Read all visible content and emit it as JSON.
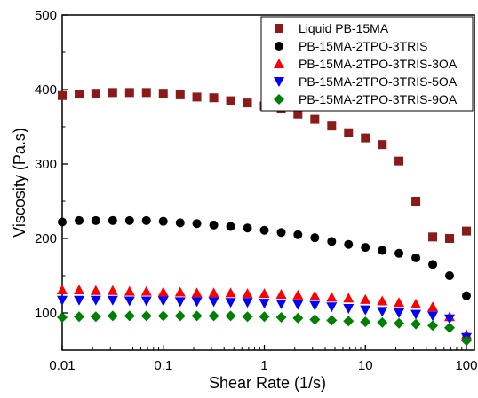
{
  "chart_data": {
    "type": "scatter",
    "xlabel": "Shear Rate (1/s)",
    "ylabel": "Viscosity (Pa.s)",
    "xscale": "log",
    "xlim": [
      0.01,
      120
    ],
    "ylim": [
      50,
      500
    ],
    "xticks": [
      0.01,
      0.1,
      1,
      10,
      100
    ],
    "xtick_labels": [
      "0.01",
      "0.1",
      "1",
      "10",
      "100"
    ],
    "yticks": [
      100,
      200,
      300,
      400,
      500
    ],
    "ytick_labels": [
      "100",
      "200",
      "300",
      "400",
      "500"
    ],
    "legend_position": "top-right",
    "x": [
      0.01,
      0.0147,
      0.0215,
      0.0316,
      0.0464,
      0.0681,
      0.1,
      0.147,
      0.215,
      0.316,
      0.464,
      0.681,
      1,
      1.47,
      2.15,
      3.16,
      4.64,
      6.81,
      10,
      14.7,
      21.5,
      31.6,
      46.4,
      68.1,
      100
    ],
    "series": [
      {
        "name": "Liquid PB-15MA",
        "marker": "square",
        "color": "#8B1A1A",
        "values": [
          392,
          394,
          395,
          396,
          396,
          396,
          395,
          393,
          390,
          389,
          385,
          382,
          378,
          374,
          367,
          360,
          351,
          342,
          335,
          326,
          304,
          250,
          202,
          200,
          210
        ]
      },
      {
        "name": "PB-15MA-2TPO-3TRIS",
        "marker": "circle",
        "color": "#000000",
        "values": [
          222,
          224,
          224,
          224,
          224,
          224,
          223,
          221,
          220,
          218,
          216,
          214,
          211,
          208,
          205,
          201,
          196,
          192,
          188,
          184,
          180,
          174,
          165,
          150,
          123
        ]
      },
      {
        "name": "PB-15MA-2TPO-3TRIS-3OA",
        "marker": "triangle-up",
        "color": "#FF0000",
        "values": [
          131,
          131,
          130,
          130,
          129,
          129,
          128,
          128,
          127,
          127,
          127,
          126,
          126,
          125,
          124,
          123,
          121,
          120,
          118,
          116,
          114,
          112,
          108,
          95,
          71
        ]
      },
      {
        "name": "PB-15MA-2TPO-3TRIS-5OA",
        "marker": "triangle-down",
        "color": "#0000FF",
        "values": [
          117,
          117,
          117,
          117,
          116,
          116,
          116,
          115,
          115,
          115,
          114,
          114,
          113,
          112,
          111,
          110,
          108,
          106,
          104,
          102,
          100,
          98,
          96,
          92,
          67
        ]
      },
      {
        "name": "PB-15MA-2TPO-3TRIS-9OA",
        "marker": "diamond",
        "color": "#008000",
        "values": [
          94,
          95,
          95,
          96,
          96,
          96,
          96,
          96,
          96,
          96,
          96,
          95,
          95,
          94,
          93,
          91,
          90,
          89,
          88,
          87,
          86,
          85,
          83,
          80,
          63
        ]
      }
    ]
  }
}
